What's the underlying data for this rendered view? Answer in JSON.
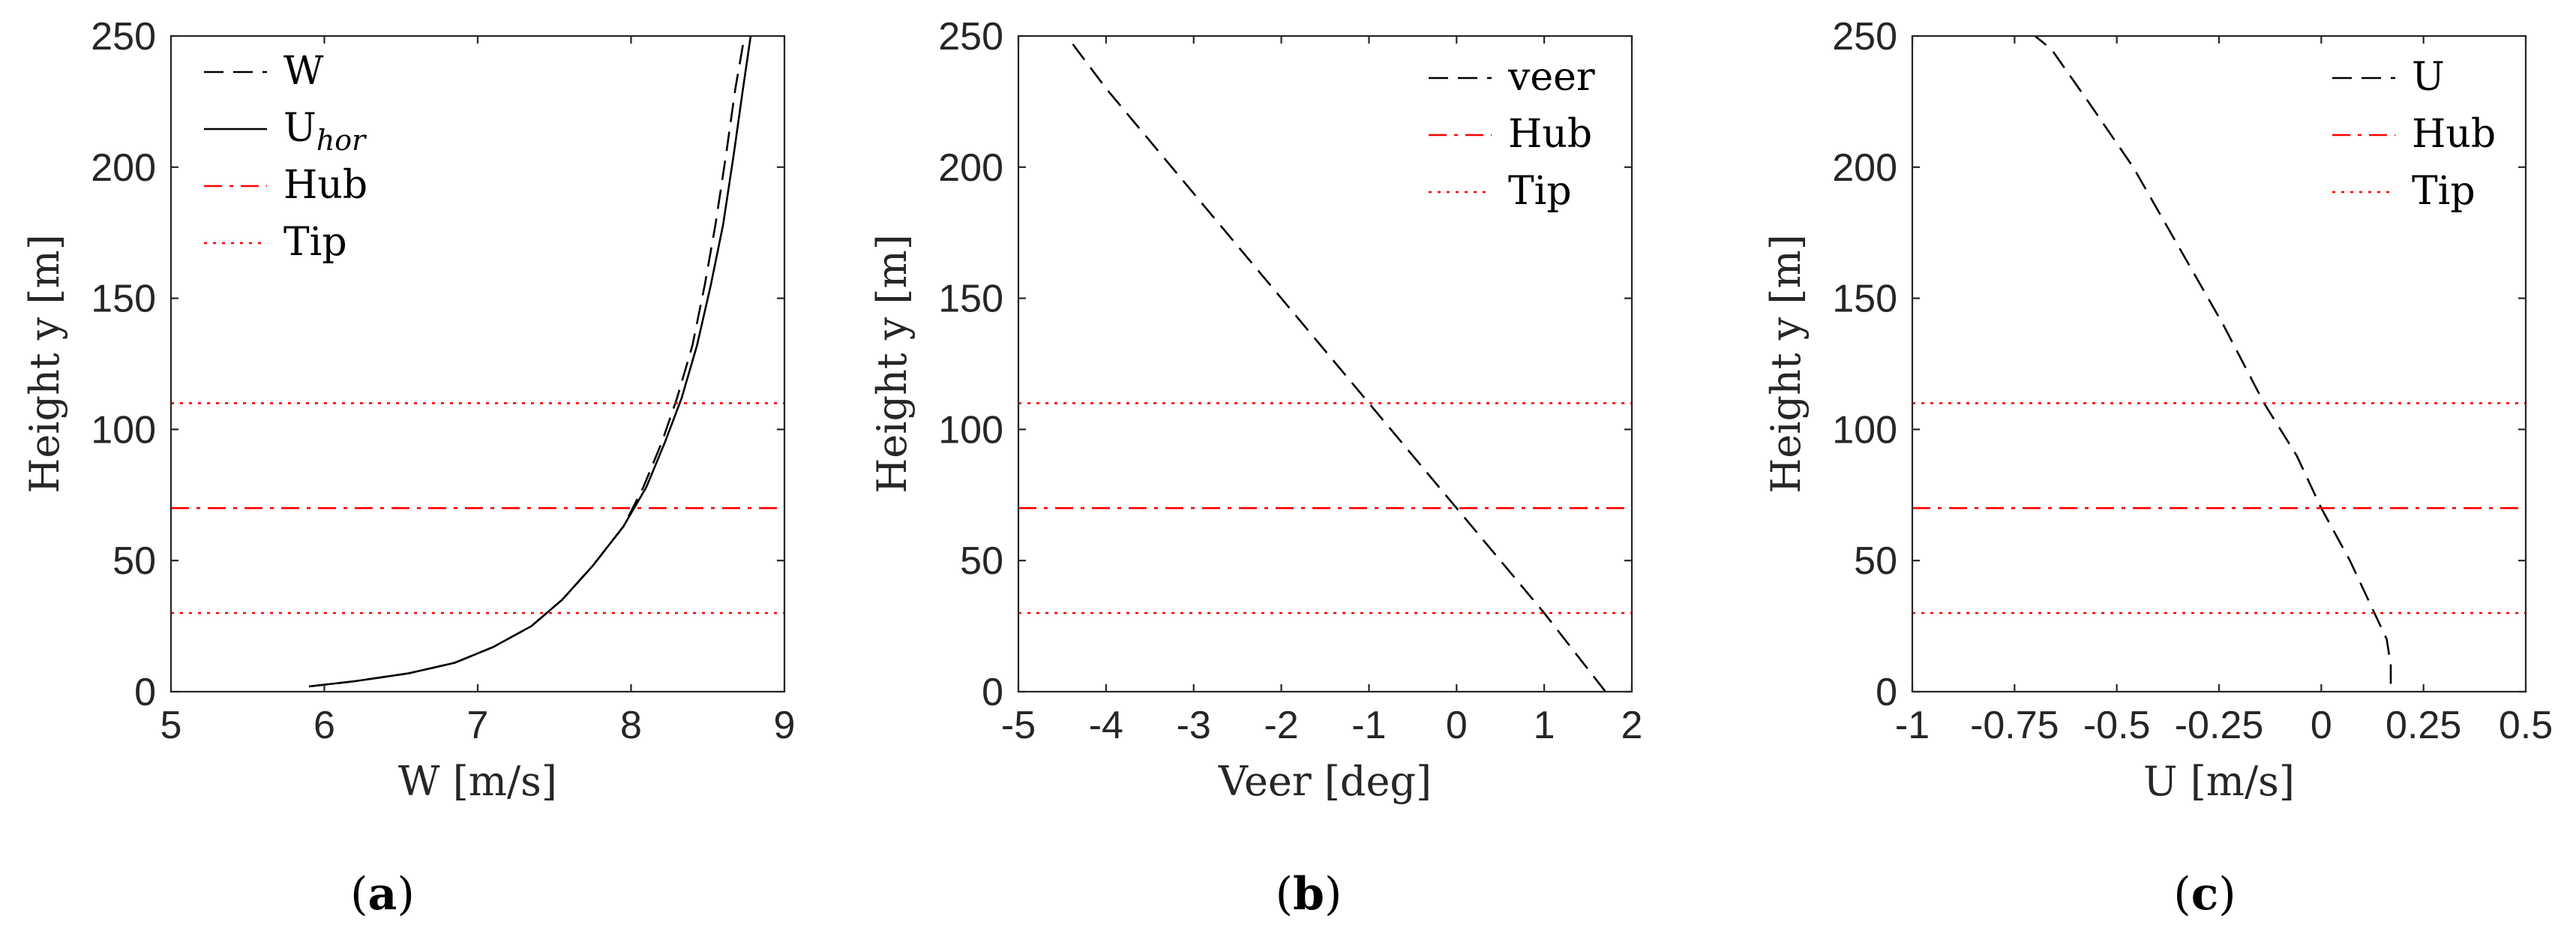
{
  "colors": {
    "black": "#000000",
    "red": "#ff0000",
    "axis": "#262626"
  },
  "chart_data": [
    {
      "type": "line",
      "panel_label": {
        "open": "(",
        "letter": "a",
        "close": ")"
      },
      "xlabel": "W [m/s]",
      "ylabel": "Height y [m]",
      "xlim": [
        5,
        9
      ],
      "ylim": [
        0,
        250
      ],
      "xticks": [
        5,
        6,
        7,
        8,
        9
      ],
      "xtick_labels": [
        "5",
        "6",
        "7",
        "8",
        "9"
      ],
      "yticks": [
        0,
        50,
        100,
        150,
        200,
        250
      ],
      "ytick_labels": [
        "0",
        "50",
        "100",
        "150",
        "200",
        "250"
      ],
      "legend_position": "top-left",
      "series": [
        {
          "name": "W",
          "legend": "W",
          "style": "dashed",
          "color": "#000000",
          "x": [
            5.9,
            6.2,
            6.55,
            6.85,
            7.1,
            7.35,
            7.55,
            7.75,
            7.95,
            8.08,
            8.2,
            8.3,
            8.4,
            8.48,
            8.55,
            8.62,
            8.68,
            8.74
          ],
          "y": [
            2,
            4,
            7,
            11,
            17,
            25,
            35,
            48,
            63,
            78,
            95,
            112,
            132,
            155,
            178,
            205,
            230,
            250
          ]
        },
        {
          "name": "U_hor",
          "legend": "U",
          "legend_sub": "hor",
          "style": "solid",
          "color": "#000000",
          "x": [
            5.9,
            6.2,
            6.55,
            6.85,
            7.1,
            7.35,
            7.55,
            7.75,
            7.95,
            8.1,
            8.22,
            8.33,
            8.43,
            8.52,
            8.6,
            8.67,
            8.73,
            8.78
          ],
          "y": [
            2,
            4,
            7,
            11,
            17,
            25,
            35,
            48,
            63,
            78,
            95,
            112,
            132,
            155,
            178,
            205,
            230,
            250
          ]
        },
        {
          "name": "Hub",
          "legend": "Hub",
          "style": "dashdot",
          "color": "#ff0000",
          "hline": 70
        },
        {
          "name": "Tip",
          "legend": "Tip",
          "style": "dotted",
          "color": "#ff0000",
          "hlines": [
            30,
            110
          ]
        }
      ]
    },
    {
      "type": "line",
      "panel_label": {
        "open": "(",
        "letter": "b",
        "close": ")"
      },
      "xlabel": "Veer [deg]",
      "ylabel": "Height y [m]",
      "xlim": [
        -5,
        2
      ],
      "ylim": [
        0,
        250
      ],
      "xticks": [
        -5,
        -4,
        -3,
        -2,
        -1,
        0,
        1,
        2
      ],
      "xtick_labels": [
        "-5",
        "-4",
        "-3",
        "-2",
        "-1",
        "0",
        "1",
        "2"
      ],
      "yticks": [
        0,
        50,
        100,
        150,
        200,
        250
      ],
      "ytick_labels": [
        "0",
        "50",
        "100",
        "150",
        "200",
        "250"
      ],
      "legend_position": "top-right",
      "series": [
        {
          "name": "veer",
          "legend": "veer",
          "style": "dashed",
          "color": "#000000",
          "x": [
            1.7,
            1.0,
            0.0,
            -1.0,
            -2.0,
            -3.0,
            -4.0,
            -4.45
          ],
          "y": [
            0,
            30,
            70,
            110,
            150,
            190,
            230,
            250
          ]
        },
        {
          "name": "Hub",
          "legend": "Hub",
          "style": "dashdot",
          "color": "#ff0000",
          "hline": 70
        },
        {
          "name": "Tip",
          "legend": "Tip",
          "style": "dotted",
          "color": "#ff0000",
          "hlines": [
            30,
            110
          ]
        }
      ]
    },
    {
      "type": "line",
      "panel_label": {
        "open": "(",
        "letter": "c",
        "close": ")"
      },
      "xlabel": "U [m/s]",
      "ylabel": "Height y [m]",
      "xlim": [
        -1,
        0.5
      ],
      "ylim": [
        0,
        250
      ],
      "xticks": [
        -1,
        -0.75,
        -0.5,
        -0.25,
        0,
        0.25,
        0.5
      ],
      "xtick_labels": [
        "-1",
        "-0.75",
        "-0.5",
        "-0.25",
        "0",
        "0.25",
        "0.5"
      ],
      "yticks": [
        0,
        50,
        100,
        150,
        200,
        250
      ],
      "ytick_labels": [
        "0",
        "50",
        "100",
        "150",
        "200",
        "250"
      ],
      "legend_position": "top-right",
      "series": [
        {
          "name": "U",
          "legend": "U",
          "style": "dashed",
          "color": "#000000",
          "x": [
            0.17,
            0.17,
            0.16,
            0.13,
            0.07,
            0.0,
            -0.06,
            -0.14,
            -0.24,
            -0.35,
            -0.46,
            -0.57,
            -0.66,
            -0.7
          ],
          "y": [
            3,
            10,
            20,
            30,
            50,
            70,
            90,
            110,
            140,
            170,
            200,
            225,
            245,
            250
          ]
        },
        {
          "name": "Hub",
          "legend": "Hub",
          "style": "dashdot",
          "color": "#ff0000",
          "hline": 70
        },
        {
          "name": "Tip",
          "legend": "Tip",
          "style": "dotted",
          "color": "#ff0000",
          "hlines": [
            30,
            110
          ]
        }
      ]
    }
  ]
}
